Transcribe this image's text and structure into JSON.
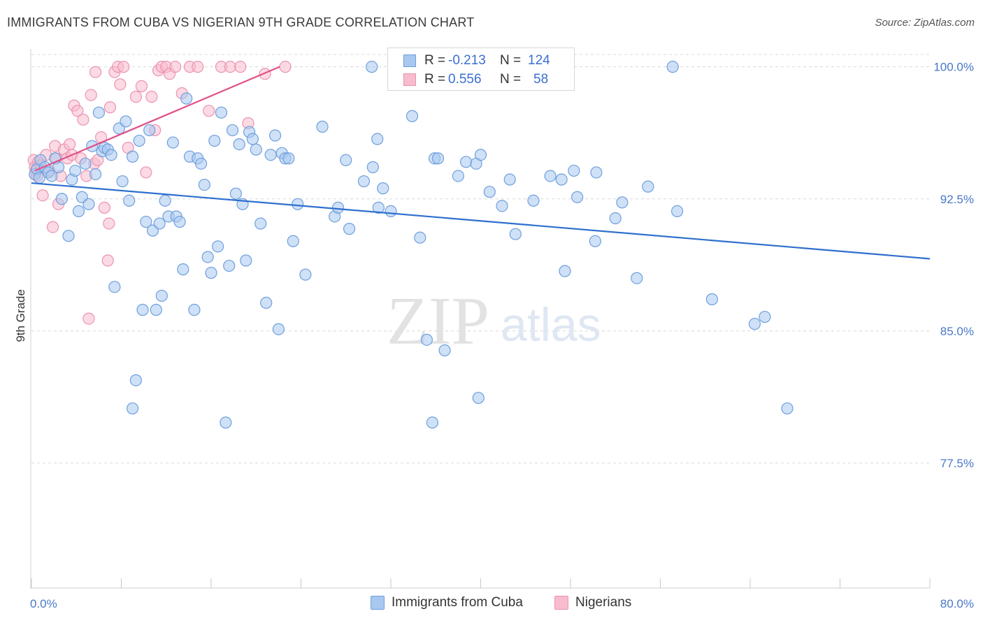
{
  "title": "IMMIGRANTS FROM CUBA VS NIGERIAN 9TH GRADE CORRELATION CHART",
  "source": "Source: ZipAtlas.com",
  "watermark": {
    "part1": "ZIP",
    "part2": "atlas"
  },
  "colors": {
    "cuba_fill": "#a8c8f0",
    "cuba_stroke": "#6f9fdc",
    "cuba_line": "#2f6fce",
    "nigeria_fill": "#f7bccd",
    "nigeria_stroke": "#ec93b0",
    "nigeria_line": "#e0508a",
    "tick": "#4a78c8",
    "grid": "#d8d8d8"
  },
  "stats": {
    "cuba": {
      "r_label": "R =",
      "r_value": "-0.213",
      "n_label": "N =",
      "n_value": "124"
    },
    "nigeria": {
      "r_label": "R =",
      "r_value": "0.556",
      "n_label": "N =",
      "n_value": "58"
    }
  },
  "legend": {
    "cuba": "Immigrants from Cuba",
    "nigeria": "Nigerians"
  },
  "chart_data": {
    "type": "scatter",
    "title": "IMMIGRANTS FROM CUBA VS NIGERIAN 9TH GRADE CORRELATION CHART",
    "xlabel": "",
    "ylabel": "9th Grade",
    "xlim": [
      0,
      80
    ],
    "ylim": [
      70.4,
      100.7
    ],
    "x_tick_labels": [
      "0.0%",
      "80.0%"
    ],
    "y_ticks": [
      77.5,
      85.0,
      92.5,
      100.0
    ],
    "y_tick_labels": [
      "77.5%",
      "85.0%",
      "92.5%",
      "100.0%"
    ],
    "grid": true,
    "legend_position": "bottom",
    "series": [
      {
        "name": "Immigrants from Cuba",
        "trend": {
          "x": [
            0,
            80
          ],
          "y": [
            93.4,
            89.1
          ]
        },
        "points": [
          [
            0.3,
            93.9
          ],
          [
            0.5,
            94.2
          ],
          [
            0.7,
            93.7
          ],
          [
            0.8,
            94.7
          ],
          [
            1.2,
            94.3
          ],
          [
            1.5,
            94.0
          ],
          [
            1.8,
            93.8
          ],
          [
            2.1,
            94.8
          ],
          [
            2.4,
            94.3
          ],
          [
            2.7,
            92.5
          ],
          [
            3.3,
            90.4
          ],
          [
            3.6,
            93.6
          ],
          [
            3.9,
            94.1
          ],
          [
            4.2,
            91.8
          ],
          [
            4.5,
            92.6
          ],
          [
            4.8,
            94.5
          ],
          [
            5.1,
            92.2
          ],
          [
            5.4,
            95.5
          ],
          [
            5.7,
            93.9
          ],
          [
            6.0,
            97.4
          ],
          [
            6.3,
            95.2
          ],
          [
            6.5,
            95.4
          ],
          [
            6.8,
            95.3
          ],
          [
            7.1,
            95.0
          ],
          [
            7.4,
            87.5
          ],
          [
            7.8,
            96.5
          ],
          [
            8.1,
            93.5
          ],
          [
            8.4,
            96.9
          ],
          [
            8.7,
            92.4
          ],
          [
            9.0,
            94.9
          ],
          [
            9.3,
            82.2
          ],
          [
            9.0,
            80.6
          ],
          [
            9.6,
            95.8
          ],
          [
            9.9,
            86.2
          ],
          [
            10.2,
            91.2
          ],
          [
            10.5,
            96.4
          ],
          [
            10.8,
            90.7
          ],
          [
            11.1,
            86.2
          ],
          [
            11.4,
            91.1
          ],
          [
            11.6,
            87.0
          ],
          [
            11.9,
            92.4
          ],
          [
            12.2,
            91.5
          ],
          [
            12.6,
            95.7
          ],
          [
            12.9,
            91.5
          ],
          [
            13.2,
            91.2
          ],
          [
            13.5,
            88.5
          ],
          [
            13.8,
            98.2
          ],
          [
            14.1,
            94.9
          ],
          [
            14.5,
            86.2
          ],
          [
            14.8,
            94.8
          ],
          [
            15.1,
            94.5
          ],
          [
            15.4,
            93.3
          ],
          [
            15.7,
            89.2
          ],
          [
            16.0,
            88.3
          ],
          [
            16.3,
            95.8
          ],
          [
            16.6,
            89.8
          ],
          [
            16.9,
            97.4
          ],
          [
            17.3,
            79.8
          ],
          [
            17.6,
            88.7
          ],
          [
            17.9,
            96.4
          ],
          [
            18.2,
            92.8
          ],
          [
            18.5,
            95.6
          ],
          [
            18.8,
            92.2
          ],
          [
            19.1,
            89.0
          ],
          [
            19.4,
            96.3
          ],
          [
            19.7,
            95.9
          ],
          [
            20.0,
            95.3
          ],
          [
            20.4,
            91.1
          ],
          [
            20.9,
            86.6
          ],
          [
            21.3,
            95.0
          ],
          [
            21.7,
            96.1
          ],
          [
            22.0,
            85.1
          ],
          [
            22.3,
            95.1
          ],
          [
            22.6,
            94.8
          ],
          [
            22.9,
            94.8
          ],
          [
            23.3,
            90.1
          ],
          [
            23.7,
            92.2
          ],
          [
            24.4,
            88.2
          ],
          [
            25.9,
            96.6
          ],
          [
            27.0,
            91.5
          ],
          [
            27.3,
            92.0
          ],
          [
            28.0,
            94.7
          ],
          [
            28.3,
            90.8
          ],
          [
            29.6,
            93.5
          ],
          [
            30.3,
            100.0
          ],
          [
            30.4,
            94.3
          ],
          [
            30.8,
            95.9
          ],
          [
            30.9,
            92.0
          ],
          [
            31.3,
            93.1
          ],
          [
            32.0,
            91.8
          ],
          [
            33.9,
            97.2
          ],
          [
            34.6,
            90.3
          ],
          [
            35.2,
            84.5
          ],
          [
            35.7,
            79.8
          ],
          [
            35.9,
            94.8
          ],
          [
            36.2,
            94.8
          ],
          [
            36.8,
            83.9
          ],
          [
            38.0,
            93.8
          ],
          [
            38.7,
            94.6
          ],
          [
            39.6,
            94.5
          ],
          [
            39.8,
            81.2
          ],
          [
            40.0,
            95.0
          ],
          [
            40.8,
            92.9
          ],
          [
            41.9,
            92.1
          ],
          [
            42.6,
            93.6
          ],
          [
            43.1,
            90.5
          ],
          [
            44.7,
            92.4
          ],
          [
            46.2,
            93.8
          ],
          [
            47.2,
            93.6
          ],
          [
            47.5,
            88.4
          ],
          [
            48.3,
            94.1
          ],
          [
            48.6,
            92.6
          ],
          [
            50.2,
            90.1
          ],
          [
            50.3,
            94.0
          ],
          [
            52.0,
            91.4
          ],
          [
            52.6,
            92.3
          ],
          [
            53.9,
            88.0
          ],
          [
            54.9,
            93.2
          ],
          [
            57.1,
            100.0
          ],
          [
            57.5,
            91.8
          ],
          [
            60.6,
            86.8
          ],
          [
            64.4,
            85.4
          ],
          [
            65.3,
            85.8
          ],
          [
            67.3,
            80.6
          ]
        ]
      },
      {
        "name": "Nigerians",
        "trend": {
          "x": [
            0.3,
            22.1
          ],
          "y": [
            94.1,
            100.0
          ]
        },
        "points": [
          [
            0.2,
            94.7
          ],
          [
            0.3,
            94.3
          ],
          [
            0.4,
            94.1
          ],
          [
            0.5,
            93.8
          ],
          [
            0.6,
            94.6
          ],
          [
            0.8,
            94.4
          ],
          [
            1.0,
            92.7
          ],
          [
            1.3,
            95.0
          ],
          [
            1.6,
            94.1
          ],
          [
            1.9,
            90.9
          ],
          [
            2.1,
            95.5
          ],
          [
            2.2,
            94.8
          ],
          [
            2.4,
            92.2
          ],
          [
            2.6,
            93.8
          ],
          [
            2.9,
            95.3
          ],
          [
            3.2,
            94.8
          ],
          [
            3.4,
            95.6
          ],
          [
            3.6,
            95.0
          ],
          [
            3.8,
            97.8
          ],
          [
            4.1,
            97.5
          ],
          [
            4.4,
            94.8
          ],
          [
            4.6,
            97.0
          ],
          [
            4.9,
            93.8
          ],
          [
            5.1,
            85.7
          ],
          [
            5.3,
            98.4
          ],
          [
            5.6,
            94.5
          ],
          [
            5.9,
            94.7
          ],
          [
            6.2,
            96.0
          ],
          [
            6.5,
            92.0
          ],
          [
            6.8,
            89.0
          ],
          [
            6.9,
            91.1
          ],
          [
            7.0,
            97.7
          ],
          [
            7.4,
            99.7
          ],
          [
            7.7,
            100.0
          ],
          [
            7.9,
            99.0
          ],
          [
            8.2,
            100.0
          ],
          [
            8.6,
            95.4
          ],
          [
            9.3,
            98.3
          ],
          [
            9.8,
            98.9
          ],
          [
            10.2,
            94.0
          ],
          [
            10.7,
            98.3
          ],
          [
            11.0,
            96.4
          ],
          [
            11.3,
            99.8
          ],
          [
            11.6,
            100.0
          ],
          [
            12.0,
            100.0
          ],
          [
            12.3,
            99.6
          ],
          [
            12.8,
            100.0
          ],
          [
            13.4,
            98.5
          ],
          [
            14.1,
            100.0
          ],
          [
            14.8,
            100.0
          ],
          [
            15.8,
            97.5
          ],
          [
            16.9,
            100.0
          ],
          [
            17.7,
            100.0
          ],
          [
            18.6,
            100.0
          ],
          [
            19.3,
            96.8
          ],
          [
            20.8,
            99.6
          ],
          [
            22.6,
            100.0
          ],
          [
            5.7,
            99.7
          ]
        ]
      }
    ]
  }
}
